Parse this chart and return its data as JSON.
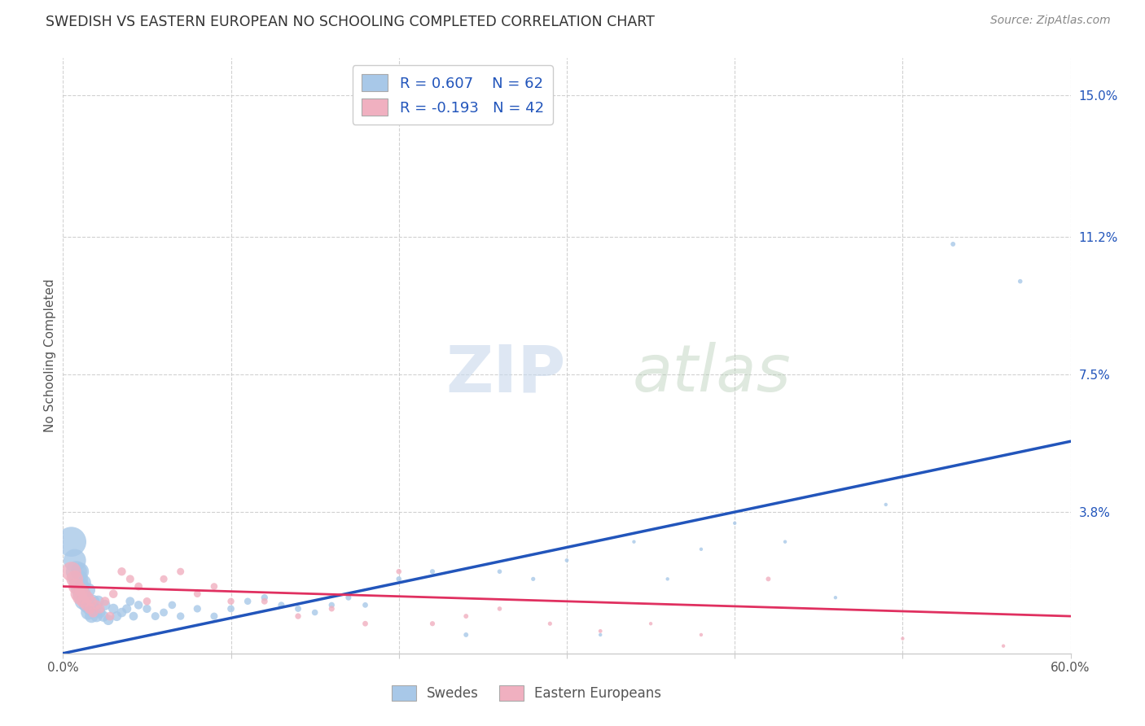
{
  "title": "SWEDISH VS EASTERN EUROPEAN NO SCHOOLING COMPLETED CORRELATION CHART",
  "source": "Source: ZipAtlas.com",
  "ylabel": "No Schooling Completed",
  "xlim": [
    0.0,
    0.6
  ],
  "ylim": [
    0.0,
    0.16
  ],
  "xtick_vals": [
    0.0,
    0.1,
    0.2,
    0.3,
    0.4,
    0.5,
    0.6
  ],
  "xtick_labels": [
    "0.0%",
    "",
    "",
    "",
    "",
    "",
    "60.0%"
  ],
  "ytick_vals": [
    0.038,
    0.075,
    0.112,
    0.15
  ],
  "ytick_labels": [
    "3.8%",
    "7.5%",
    "11.2%",
    "15.0%"
  ],
  "blue_color": "#a8c8e8",
  "pink_color": "#f0b0c0",
  "blue_line_color": "#2255bb",
  "pink_line_color": "#e03060",
  "legend_R_blue": "R = 0.607",
  "legend_N_blue": "N = 62",
  "legend_R_pink": "R = -0.193",
  "legend_N_pink": "N = 42",
  "swedes_label": "Swedes",
  "ee_label": "Eastern Europeans",
  "watermark_zip": "ZIP",
  "watermark_atlas": "atlas",
  "background_color": "#ffffff",
  "grid_color": "#cccccc",
  "blue_scatter_x": [
    0.005,
    0.007,
    0.008,
    0.009,
    0.01,
    0.01,
    0.011,
    0.012,
    0.012,
    0.013,
    0.014,
    0.015,
    0.015,
    0.016,
    0.017,
    0.018,
    0.019,
    0.02,
    0.021,
    0.022,
    0.024,
    0.025,
    0.027,
    0.03,
    0.032,
    0.035,
    0.038,
    0.04,
    0.042,
    0.045,
    0.05,
    0.055,
    0.06,
    0.065,
    0.07,
    0.08,
    0.09,
    0.1,
    0.11,
    0.12,
    0.13,
    0.14,
    0.15,
    0.16,
    0.17,
    0.18,
    0.2,
    0.22,
    0.24,
    0.26,
    0.28,
    0.3,
    0.32,
    0.34,
    0.36,
    0.38,
    0.4,
    0.43,
    0.46,
    0.49,
    0.53,
    0.57
  ],
  "blue_scatter_y": [
    0.03,
    0.025,
    0.022,
    0.02,
    0.018,
    0.022,
    0.016,
    0.014,
    0.019,
    0.015,
    0.013,
    0.011,
    0.017,
    0.012,
    0.01,
    0.014,
    0.012,
    0.01,
    0.014,
    0.011,
    0.01,
    0.013,
    0.009,
    0.012,
    0.01,
    0.011,
    0.012,
    0.014,
    0.01,
    0.013,
    0.012,
    0.01,
    0.011,
    0.013,
    0.01,
    0.012,
    0.01,
    0.012,
    0.014,
    0.015,
    0.013,
    0.012,
    0.011,
    0.013,
    0.015,
    0.013,
    0.02,
    0.022,
    0.005,
    0.022,
    0.02,
    0.025,
    0.005,
    0.03,
    0.02,
    0.028,
    0.035,
    0.03,
    0.015,
    0.04,
    0.11,
    0.1
  ],
  "blue_scatter_s": [
    700,
    400,
    350,
    300,
    280,
    260,
    240,
    220,
    200,
    190,
    180,
    170,
    160,
    150,
    140,
    130,
    120,
    110,
    105,
    100,
    95,
    90,
    85,
    80,
    75,
    70,
    65,
    62,
    60,
    58,
    55,
    52,
    50,
    48,
    46,
    44,
    42,
    40,
    38,
    36,
    34,
    32,
    30,
    28,
    26,
    24,
    22,
    20,
    18,
    16,
    14,
    12,
    10,
    10,
    10,
    10,
    10,
    10,
    10,
    10,
    18,
    16
  ],
  "pink_scatter_x": [
    0.005,
    0.007,
    0.008,
    0.009,
    0.01,
    0.011,
    0.012,
    0.013,
    0.014,
    0.015,
    0.016,
    0.017,
    0.018,
    0.02,
    0.022,
    0.025,
    0.028,
    0.03,
    0.035,
    0.04,
    0.045,
    0.05,
    0.06,
    0.07,
    0.08,
    0.09,
    0.1,
    0.12,
    0.14,
    0.16,
    0.18,
    0.2,
    0.22,
    0.24,
    0.26,
    0.29,
    0.32,
    0.35,
    0.38,
    0.42,
    0.5,
    0.56
  ],
  "pink_scatter_y": [
    0.022,
    0.02,
    0.018,
    0.016,
    0.015,
    0.017,
    0.014,
    0.016,
    0.013,
    0.015,
    0.012,
    0.014,
    0.011,
    0.013,
    0.012,
    0.014,
    0.01,
    0.016,
    0.022,
    0.02,
    0.018,
    0.014,
    0.02,
    0.022,
    0.016,
    0.018,
    0.014,
    0.014,
    0.01,
    0.012,
    0.008,
    0.022,
    0.008,
    0.01,
    0.012,
    0.008,
    0.006,
    0.008,
    0.005,
    0.02,
    0.004,
    0.002
  ],
  "pink_scatter_s": [
    300,
    220,
    200,
    180,
    160,
    140,
    130,
    120,
    110,
    100,
    90,
    85,
    80,
    75,
    70,
    65,
    60,
    58,
    55,
    52,
    50,
    48,
    44,
    42,
    40,
    38,
    36,
    32,
    28,
    26,
    24,
    22,
    20,
    18,
    16,
    14,
    12,
    10,
    10,
    18,
    10,
    10
  ],
  "blue_line_x": [
    0.0,
    0.6
  ],
  "blue_line_y": [
    0.0,
    0.057
  ],
  "pink_line_x": [
    0.0,
    0.6
  ],
  "pink_line_y": [
    0.018,
    0.01
  ]
}
